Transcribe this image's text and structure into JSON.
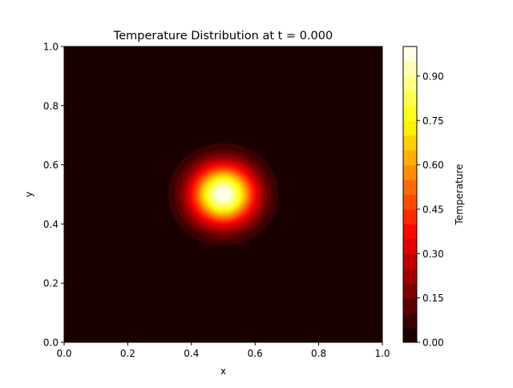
{
  "chart_data": {
    "type": "heatmap",
    "subtype": "filled-contour",
    "title": "Temperature Distribution at t = 0.000",
    "xlabel": "x",
    "ylabel": "y",
    "xlim": [
      0,
      1
    ],
    "ylim": [
      0,
      1
    ],
    "xticks": [
      "0.0",
      "0.2",
      "0.4",
      "0.6",
      "0.8",
      "1.0"
    ],
    "yticks": [
      "0.0",
      "0.2",
      "0.4",
      "0.6",
      "0.8",
      "1.0"
    ],
    "field": {
      "form": "gaussian",
      "center": [
        0.5,
        0.5
      ],
      "peak": 1.0,
      "width_param": 0.01
    },
    "colormap": "hot",
    "grid": false,
    "colorbar": {
      "label": "Temperature",
      "range": [
        0,
        1
      ],
      "level_step": 0.05,
      "ticks": [
        "0.00",
        "0.15",
        "0.30",
        "0.45",
        "0.60",
        "0.75",
        "0.90"
      ],
      "placement": "right"
    }
  }
}
